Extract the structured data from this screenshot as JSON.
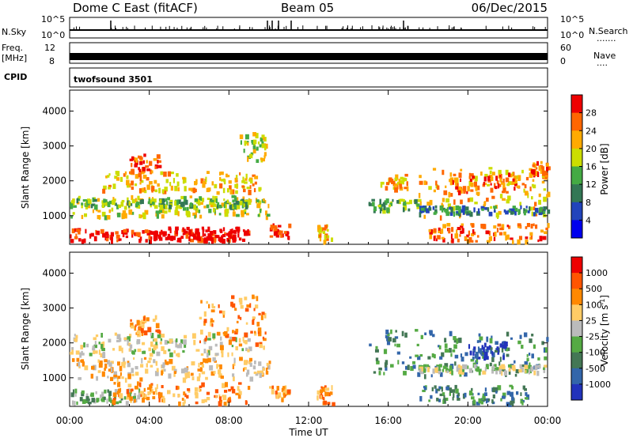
{
  "header": {
    "station": "Dome C East (fitACF)",
    "beam": "Beam 05",
    "date": "06/Dec/2015"
  },
  "side_labels": {
    "nsky": "N.Sky",
    "freq_top": "Freq.",
    "freq_unit": "[MHz]",
    "cpid": "CPID",
    "nsearch": "N.Search",
    "nave": "Nave"
  },
  "strip_ticks": {
    "nsky_left": [
      "10^5",
      "10^0"
    ],
    "nsky_right": [
      "10^5",
      "10^0"
    ],
    "freq_left": [
      "12",
      "8"
    ],
    "nave_right": [
      "60",
      "0"
    ]
  },
  "cpid_text": "twofsound 3501",
  "chart_data": [
    {
      "type": "heatmap",
      "panel": "power",
      "xlabel": "Time UT",
      "ylabel": "Slant Range [km]",
      "x_ticks": [
        "00:00",
        "04:00",
        "08:00",
        "12:00",
        "16:00",
        "20:00",
        "00:00"
      ],
      "x_range_hours": [
        0,
        24
      ],
      "y_ticks": [
        1000,
        2000,
        3000,
        4000
      ],
      "ylim": [
        180,
        4600
      ],
      "colorbar": {
        "label": "Power [dB]",
        "ticks": [
          4,
          8,
          12,
          16,
          20,
          24,
          28
        ],
        "range": [
          0,
          32
        ],
        "colors": [
          "#0000ee",
          "#2244bb",
          "#337755",
          "#44aa44",
          "#ccdd00",
          "#ffaa00",
          "#ff6600",
          "#ee0000"
        ]
      },
      "regions": [
        {
          "t0": 0.0,
          "t1": 9.0,
          "r0": 300,
          "r1": 650,
          "level": 7
        },
        {
          "t0": 4.0,
          "t1": 8.5,
          "r0": 350,
          "r1": 700,
          "level": 8
        },
        {
          "t0": 0.0,
          "t1": 10.0,
          "r0": 1000,
          "r1": 1600,
          "level": 4
        },
        {
          "t0": 0.0,
          "t1": 9.0,
          "r0": 1300,
          "r1": 1500,
          "level": 3
        },
        {
          "t0": 1.5,
          "t1": 9.5,
          "r0": 1700,
          "r1": 2300,
          "level": 5
        },
        {
          "t0": 3.0,
          "t1": 4.5,
          "r0": 2300,
          "r1": 2800,
          "level": 6
        },
        {
          "t0": 8.5,
          "t1": 9.8,
          "r0": 2600,
          "r1": 3400,
          "level": 4
        },
        {
          "t0": 10.0,
          "t1": 11.0,
          "r0": 400,
          "r1": 800,
          "level": 7
        },
        {
          "t0": 12.4,
          "t1": 13.2,
          "r0": 300,
          "r1": 800,
          "level": 5
        },
        {
          "t0": 15.0,
          "t1": 17.5,
          "r0": 1200,
          "r1": 1500,
          "level": 3
        },
        {
          "t0": 15.5,
          "t1": 17.0,
          "r0": 1800,
          "r1": 2200,
          "level": 5
        },
        {
          "t0": 17.5,
          "t1": 24.0,
          "r0": 1000,
          "r1": 2400,
          "level": 5
        },
        {
          "t0": 19.0,
          "t1": 22.5,
          "r0": 1700,
          "r1": 2300,
          "level": 6
        },
        {
          "t0": 18.0,
          "t1": 24.0,
          "r0": 300,
          "r1": 800,
          "level": 6
        },
        {
          "t0": 23.0,
          "t1": 24.0,
          "r0": 2000,
          "r1": 2600,
          "level": 6
        },
        {
          "t0": 17.5,
          "t1": 24.0,
          "r0": 1100,
          "r1": 1300,
          "level": 2
        }
      ]
    },
    {
      "type": "heatmap",
      "panel": "velocity",
      "xlabel": "Time UT",
      "ylabel": "Slant Range [km]",
      "x_ticks": [
        "00:00",
        "04:00",
        "08:00",
        "12:00",
        "16:00",
        "20:00",
        "00:00"
      ],
      "x_range_hours": [
        0,
        24
      ],
      "y_ticks": [
        1000,
        2000,
        3000,
        4000
      ],
      "ylim": [
        180,
        4600
      ],
      "colorbar": {
        "label": "Velocity [m s",
        "label_sup": "-1",
        "label_end": "]",
        "ticks": [
          "1000",
          "500",
          "100",
          "25",
          "-25",
          "-100",
          "-500",
          "-1000"
        ],
        "colors": [
          "#2233bb",
          "#3366aa",
          "#447755",
          "#55aa44",
          "#bbbbbb",
          "#ffcc66",
          "#ff8800",
          "#ff5500",
          "#ee0000"
        ]
      },
      "regions": [
        {
          "t0": 0.0,
          "t1": 3.5,
          "r0": 300,
          "r1": 700,
          "level": 3
        },
        {
          "t0": 2.0,
          "t1": 9.0,
          "r0": 300,
          "r1": 900,
          "level": 6
        },
        {
          "t0": 0.0,
          "t1": 10.0,
          "r0": 1000,
          "r1": 1600,
          "level": 5
        },
        {
          "t0": 0.0,
          "t1": 9.0,
          "r0": 1700,
          "r1": 2300,
          "level": 4
        },
        {
          "t0": 3.0,
          "t1": 4.5,
          "r0": 2300,
          "r1": 2800,
          "level": 6
        },
        {
          "t0": 6.5,
          "t1": 9.8,
          "r0": 1900,
          "r1": 3400,
          "level": 6
        },
        {
          "t0": 10.0,
          "t1": 11.0,
          "r0": 400,
          "r1": 800,
          "level": 6
        },
        {
          "t0": 12.4,
          "t1": 13.2,
          "r0": 300,
          "r1": 800,
          "level": 6
        },
        {
          "t0": 15.0,
          "t1": 24.0,
          "r0": 1100,
          "r1": 2400,
          "level": 2
        },
        {
          "t0": 17.5,
          "t1": 24.0,
          "r0": 1200,
          "r1": 1400,
          "level": 4
        },
        {
          "t0": 17.5,
          "t1": 23.0,
          "r0": 300,
          "r1": 800,
          "level": 2
        },
        {
          "t0": 20.0,
          "t1": 22.0,
          "r0": 1600,
          "r1": 2100,
          "level": 1
        }
      ]
    }
  ]
}
